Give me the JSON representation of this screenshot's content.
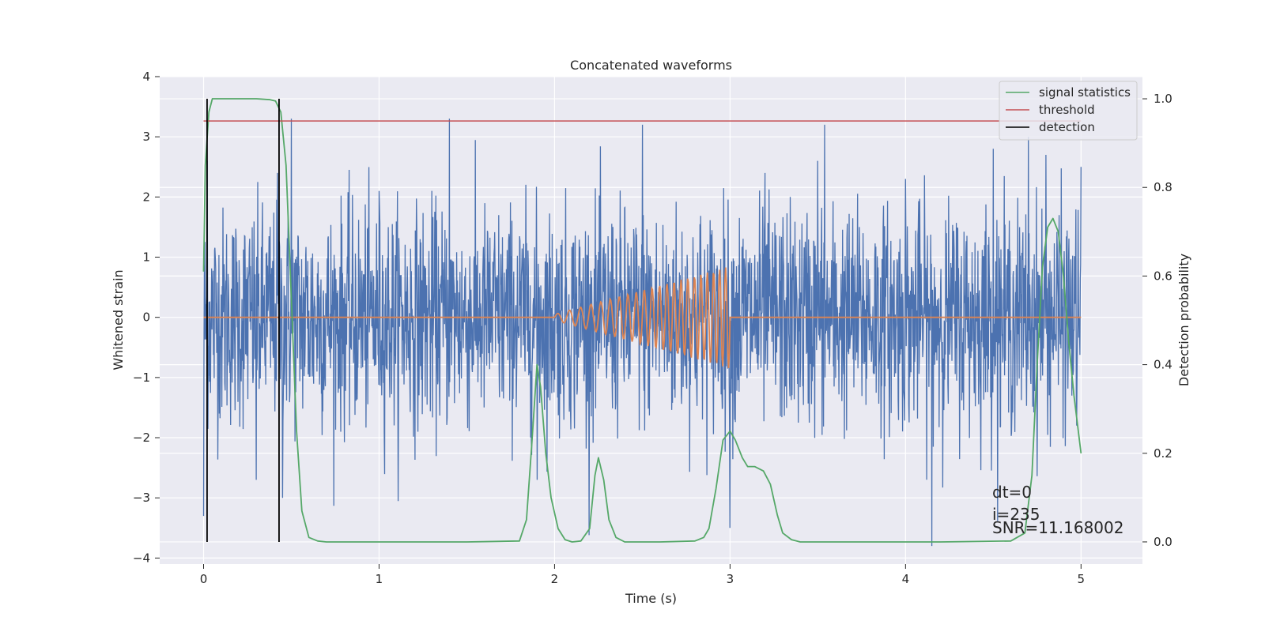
{
  "chart_data": {
    "type": "line",
    "title": "Concatenated waveforms",
    "xlabel": "Time (s)",
    "ylabel": "Whitened strain",
    "ylabel_right": "Detection probability",
    "xlim": [
      -0.25,
      5.35
    ],
    "ylim": [
      -4.1,
      4.0
    ],
    "ylim_right": [
      -0.05,
      1.05
    ],
    "x_ticks": [
      0,
      1,
      2,
      3,
      4,
      5
    ],
    "y_ticks": [
      -4,
      -3,
      -2,
      -1,
      0,
      1,
      2,
      3,
      4
    ],
    "y_ticks_right": [
      0.0,
      0.2,
      0.4,
      0.6,
      0.8,
      1.0
    ],
    "x_tick_labels": [
      "0",
      "1",
      "2",
      "3",
      "4",
      "5"
    ],
    "y_tick_labels": [
      "−4",
      "−3",
      "−2",
      "−1",
      "0",
      "1",
      "2",
      "3",
      "4"
    ],
    "y_tick_labels_right": [
      "0.0",
      "0.2",
      "0.4",
      "0.6",
      "0.8",
      "1.0"
    ],
    "grid": true,
    "legend_position": "upper-right",
    "colors": {
      "strain": "#4c72b0",
      "template": "#dd8452",
      "signal_statistics": "#55a868",
      "threshold": "#c44e52",
      "detection": "#000000",
      "axes_bg": "#eaeaf2",
      "grid": "#ffffff"
    },
    "series": [
      {
        "key": "strain",
        "axis": "left",
        "description_points": {
          "x": [
            0,
            0.02,
            0.3,
            0.42,
            0.45,
            0.5,
            1.0,
            1.4,
            1.9,
            2.5,
            3.0,
            3.2,
            3.5,
            3.54,
            4.0,
            4.15,
            4.5,
            4.7,
            4.8,
            5.0
          ],
          "y": [
            -3.3,
            2.6,
            -2.7,
            2.4,
            -3.0,
            3.3,
            2.1,
            3.3,
            -2.7,
            3.2,
            -3.5,
            2.4,
            2.6,
            3.2,
            2.3,
            -3.8,
            2.8,
            3.0,
            2.7,
            2.5
          ]
        },
        "noise_amplitude": 0.9,
        "x_range": [
          0,
          5
        ]
      },
      {
        "key": "template",
        "axis": "left",
        "chirp_start": 2.0,
        "chirp_end": 3.0,
        "chirp_start_amplitude": 0.05,
        "chirp_end_amplitude": 0.85,
        "x_range": [
          0,
          5
        ]
      },
      {
        "key": "signal_statistics",
        "name": "signal statistics",
        "axis": "right",
        "x": [
          0.0,
          0.01,
          0.03,
          0.05,
          0.08,
          0.12,
          0.2,
          0.3,
          0.38,
          0.41,
          0.44,
          0.47,
          0.5,
          0.53,
          0.56,
          0.6,
          0.65,
          0.7,
          1.0,
          1.5,
          1.8,
          1.84,
          1.87,
          1.9,
          1.92,
          1.95,
          1.98,
          2.02,
          2.06,
          2.1,
          2.15,
          2.2,
          2.23,
          2.25,
          2.28,
          2.31,
          2.35,
          2.4,
          2.6,
          2.8,
          2.85,
          2.88,
          2.92,
          2.96,
          3.0,
          3.03,
          3.07,
          3.1,
          3.14,
          3.19,
          3.23,
          3.27,
          3.3,
          3.35,
          3.4,
          3.8,
          4.2,
          4.6,
          4.68,
          4.72,
          4.75,
          4.78,
          4.81,
          4.84,
          4.87,
          4.9,
          4.93,
          4.96,
          5.0
        ],
        "y": [
          0.61,
          0.85,
          0.97,
          1.0,
          1.0,
          1.0,
          1.0,
          1.0,
          0.998,
          0.995,
          0.97,
          0.85,
          0.55,
          0.25,
          0.07,
          0.01,
          0.002,
          0.0,
          0.0,
          0.0,
          0.002,
          0.05,
          0.22,
          0.4,
          0.35,
          0.2,
          0.1,
          0.03,
          0.005,
          0.0,
          0.002,
          0.03,
          0.15,
          0.19,
          0.14,
          0.05,
          0.01,
          0.0,
          0.0,
          0.002,
          0.01,
          0.03,
          0.12,
          0.23,
          0.25,
          0.23,
          0.19,
          0.17,
          0.17,
          0.16,
          0.13,
          0.06,
          0.02,
          0.005,
          0.0,
          0.0,
          0.0,
          0.002,
          0.02,
          0.15,
          0.4,
          0.62,
          0.71,
          0.73,
          0.7,
          0.6,
          0.45,
          0.33,
          0.2
        ]
      },
      {
        "key": "threshold",
        "name": "threshold",
        "axis": "right",
        "x": [
          0,
          5
        ],
        "y": [
          0.95,
          0.95
        ]
      },
      {
        "key": "detection",
        "name": "detection",
        "axis": "right",
        "x": [
          0.02,
          0.43
        ],
        "y_range": [
          0.0,
          1.0
        ]
      }
    ],
    "annotations": {
      "dt": "dt=0",
      "i": "i=235",
      "snr": "SNR=11.168002"
    }
  }
}
